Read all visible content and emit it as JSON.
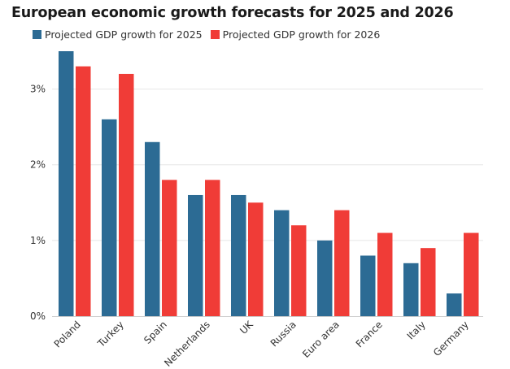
{
  "chart_data": {
    "type": "bar",
    "title": "European economic growth forecasts for 2025 and 2026",
    "categories": [
      "Poland",
      "Turkey",
      "Spain",
      "Netherlands",
      "UK",
      "Russia",
      "Euro area",
      "France",
      "Italy",
      "Germany"
    ],
    "series": [
      {
        "name": "Projected GDP growth for 2025",
        "color": "#2c6b94",
        "values": [
          3.5,
          2.6,
          2.3,
          1.6,
          1.6,
          1.4,
          1.0,
          0.8,
          0.7,
          0.3
        ]
      },
      {
        "name": "Projected GDP growth for 2026",
        "color": "#f03c37",
        "values": [
          3.3,
          3.2,
          1.8,
          1.8,
          1.5,
          1.2,
          1.4,
          1.1,
          0.9,
          1.1
        ]
      }
    ],
    "xlabel": "",
    "ylabel": "",
    "ylim": [
      0,
      3.5
    ],
    "yticks": [
      0,
      1,
      2,
      3
    ],
    "ytick_labels": [
      "0%",
      "1%",
      "2%",
      "3%"
    ],
    "grid": true,
    "legend_position": "top-left"
  }
}
